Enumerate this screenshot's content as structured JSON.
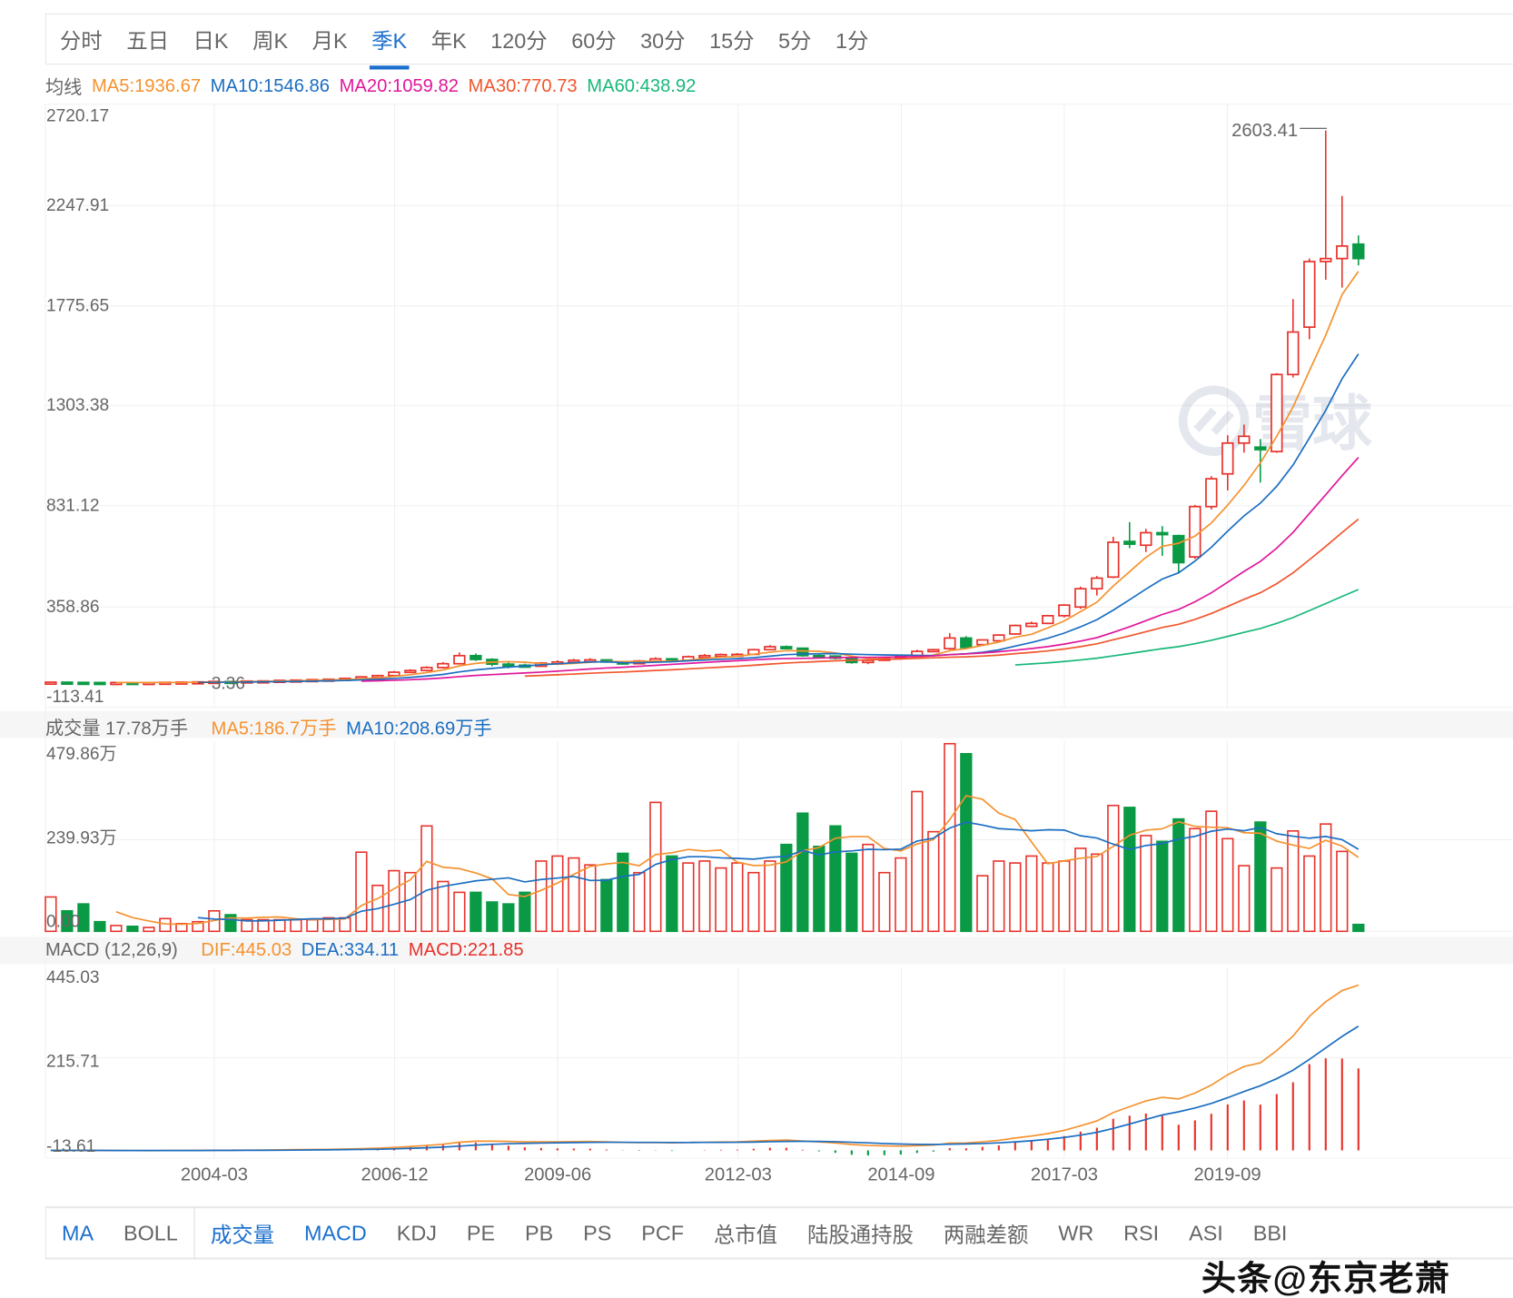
{
  "period_tabs": [
    "分时",
    "五日",
    "日K",
    "周K",
    "月K",
    "季K",
    "年K",
    "120分",
    "60分",
    "30分",
    "15分",
    "5分",
    "1分"
  ],
  "active_period": "季K",
  "ma_legend": {
    "label": "均线",
    "items": [
      {
        "text": "MA5:1936.67",
        "color": "#f5922f"
      },
      {
        "text": "MA10:1546.86",
        "color": "#1b6ec2"
      },
      {
        "text": "MA20:1059.82",
        "color": "#e0179b"
      },
      {
        "text": "MA30:770.73",
        "color": "#f2562d"
      },
      {
        "text": "MA60:438.92",
        "color": "#18b87a"
      }
    ]
  },
  "volume_legend": {
    "label": "成交量 17.78万手",
    "items": [
      {
        "text": "MA5:186.7万手",
        "color": "#f5922f"
      },
      {
        "text": "MA10:208.69万手",
        "color": "#1b6ec2"
      }
    ]
  },
  "macd_legend": {
    "label": "MACD (12,26,9)",
    "items": [
      {
        "text": "DIF:445.03",
        "color": "#f5922f"
      },
      {
        "text": "DEA:334.11",
        "color": "#1b6ec2"
      },
      {
        "text": "MACD:221.85",
        "color": "#e8312a"
      }
    ]
  },
  "colors": {
    "up": "#e8312a",
    "down": "#0a9a45",
    "accent": "#1a6fce"
  },
  "chart_data": [
    {
      "type": "candlestick",
      "ylim": [
        -113.41,
        2720.17
      ],
      "y_ticks": [
        "2720.17",
        "2247.91",
        "1775.65",
        "1303.38",
        "831.12",
        "358.86",
        "-113.41"
      ],
      "x_ticks": [
        "2004-03",
        "2006-12",
        "2009-06",
        "2012-03",
        "2014-09",
        "2017-03",
        "2019-09"
      ],
      "annotations": {
        "max": "2603.41",
        "min": "3.36"
      },
      "grid": true,
      "ma_periods": [
        5,
        10,
        20,
        30,
        60
      ],
      "ohlc": [
        [
          3,
          6,
          3,
          5
        ],
        [
          5,
          6,
          3,
          4
        ],
        [
          4,
          5,
          3,
          3.5
        ],
        [
          3.5,
          4,
          2.5,
          3
        ],
        [
          3,
          4,
          2.5,
          3.5
        ],
        [
          3.5,
          4,
          2.8,
          3
        ],
        [
          3,
          4,
          2.5,
          3.5
        ],
        [
          3.5,
          5,
          3,
          4.5
        ],
        [
          4.5,
          6,
          4,
          5.5
        ],
        [
          5.5,
          7,
          5,
          6.5
        ],
        [
          6.5,
          9,
          6,
          8.5
        ],
        [
          8.5,
          10,
          7,
          8
        ],
        [
          8,
          11,
          7.5,
          10.5
        ],
        [
          10.5,
          12,
          9,
          11
        ],
        [
          11,
          14,
          10,
          13.5
        ],
        [
          13.5,
          16,
          12,
          15
        ],
        [
          15,
          18,
          14,
          17
        ],
        [
          17,
          20,
          16,
          19
        ],
        [
          19,
          24,
          18,
          23
        ],
        [
          23,
          32,
          22,
          30
        ],
        [
          30,
          40,
          28,
          36
        ],
        [
          36,
          58,
          34,
          52
        ],
        [
          52,
          66,
          48,
          60
        ],
        [
          60,
          80,
          56,
          74
        ],
        [
          74,
          100,
          70,
          92
        ],
        [
          92,
          145,
          88,
          130
        ],
        [
          130,
          140,
          105,
          112
        ],
        [
          112,
          118,
          80,
          90
        ],
        [
          90,
          100,
          70,
          85
        ],
        [
          85,
          92,
          75,
          80
        ],
        [
          80,
          100,
          78,
          95
        ],
        [
          95,
          108,
          88,
          100
        ],
        [
          100,
          115,
          95,
          108
        ],
        [
          108,
          118,
          100,
          110
        ],
        [
          110,
          112,
          96,
          100
        ],
        [
          100,
          104,
          88,
          92
        ],
        [
          92,
          110,
          90,
          105
        ],
        [
          105,
          122,
          100,
          115
        ],
        [
          115,
          118,
          104,
          108
        ],
        [
          108,
          130,
          105,
          125
        ],
        [
          125,
          138,
          120,
          130
        ],
        [
          130,
          140,
          125,
          135
        ],
        [
          135,
          142,
          128,
          136
        ],
        [
          136,
          162,
          134,
          158
        ],
        [
          158,
          180,
          155,
          172
        ],
        [
          172,
          178,
          160,
          165
        ],
        [
          165,
          168,
          125,
          130
        ],
        [
          130,
          140,
          118,
          128
        ],
        [
          128,
          132,
          112,
          118
        ],
        [
          118,
          120,
          92,
          98
        ],
        [
          98,
          112,
          90,
          108
        ],
        [
          108,
          125,
          105,
          120
        ],
        [
          120,
          130,
          112,
          126
        ],
        [
          126,
          158,
          124,
          150
        ],
        [
          150,
          162,
          146,
          158
        ],
        [
          163,
          236,
          158,
          213
        ],
        [
          213,
          222,
          160,
          168
        ],
        [
          182,
          206,
          176,
          204
        ],
        [
          200,
          230,
          196,
          227
        ],
        [
          232,
          276,
          228,
          272
        ],
        [
          268,
          290,
          264,
          282
        ],
        [
          282,
          322,
          278,
          318
        ],
        [
          318,
          372,
          310,
          368
        ],
        [
          359,
          455,
          350,
          445
        ],
        [
          445,
          505,
          413,
          495
        ],
        [
          500,
          690,
          495,
          664
        ],
        [
          668,
          759,
          636,
          655
        ],
        [
          650,
          727,
          618,
          709
        ],
        [
          709,
          740,
          600,
          700
        ],
        [
          695,
          700,
          522,
          568
        ],
        [
          595,
          840,
          585,
          832
        ],
        [
          832,
          975,
          818,
          963
        ],
        [
          986,
          1168,
          908,
          1131
        ],
        [
          1131,
          1218,
          1086,
          1163
        ],
        [
          1112,
          1150,
          945,
          1100
        ],
        [
          1091,
          1460,
          1085,
          1454
        ],
        [
          1454,
          1809,
          1440,
          1654
        ],
        [
          1677,
          2000,
          1620,
          1986
        ],
        [
          1986,
          2603.41,
          1900,
          2000
        ],
        [
          2000,
          2295,
          1863,
          2059
        ],
        [
          2068,
          2109,
          1968,
          2000
        ]
      ]
    },
    {
      "type": "bar",
      "unit": "万手",
      "ylim": [
        0,
        479.86
      ],
      "y_ticks": [
        "479.86万",
        "239.93万",
        "0.00"
      ],
      "ma_periods": [
        5,
        10
      ],
      "values": [
        89,
        53,
        71,
        25,
        15,
        13,
        10,
        33,
        20,
        25,
        53,
        43,
        30,
        30,
        30,
        30,
        30,
        35,
        35,
        205,
        119,
        157,
        152,
        273,
        129,
        101,
        101,
        76,
        71,
        101,
        182,
        195,
        190,
        172,
        134,
        202,
        152,
        334,
        195,
        177,
        182,
        164,
        177,
        152,
        182,
        225,
        306,
        220,
        273,
        202,
        225,
        152,
        190,
        362,
        258,
        486,
        460,
        144,
        182,
        177,
        195,
        177,
        182,
        215,
        200,
        326,
        321,
        248,
        233,
        291,
        266,
        311,
        240,
        170,
        283,
        164,
        260,
        195,
        278,
        207,
        17.78
      ]
    },
    {
      "type": "line",
      "name": "MACD (12,26,9)",
      "ylim": [
        -13.61,
        445.03
      ],
      "y_ticks": [
        "445.03",
        "215.71",
        "-13.61"
      ],
      "series": [
        {
          "name": "DIF",
          "last": 445.03
        },
        {
          "name": "DEA",
          "last": 334.11
        },
        {
          "name": "MACD",
          "last": 221.85
        }
      ]
    }
  ],
  "indicator_tabs": [
    "MA",
    "BOLL",
    "成交量",
    "MACD",
    "KDJ",
    "PE",
    "PB",
    "PS",
    "PCF",
    "总市值",
    "陆股通持股",
    "两融差额",
    "WR",
    "RSI",
    "ASI",
    "BBI"
  ],
  "active_indicators": [
    "MA",
    "成交量",
    "MACD"
  ],
  "watermark": "头条@东京老萧",
  "logo_watermark": "雪球"
}
